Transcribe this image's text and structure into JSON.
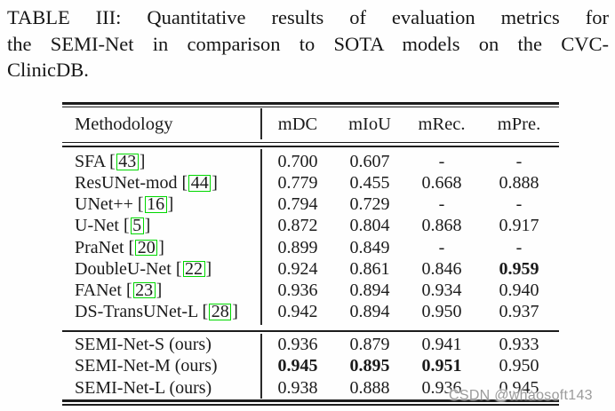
{
  "caption": {
    "lines": [
      "TABLE III: Quantitative results of evaluation metrics for",
      "the SEMI-Net in comparison to SOTA models on the CVC-",
      "ClinicDB."
    ]
  },
  "table": {
    "header": {
      "methodology": "Methodology",
      "cols": [
        "mDC",
        "mIoU",
        "mRec.",
        "mPre."
      ]
    },
    "sections": [
      {
        "id": "sota",
        "rows": [
          {
            "method": "SFA",
            "cite": "43",
            "values": [
              "0.700",
              "0.607",
              "-",
              "-"
            ],
            "bold": []
          },
          {
            "method": "ResUNet-mod",
            "cite": "44",
            "values": [
              "0.779",
              "0.455",
              "0.668",
              "0.888"
            ],
            "bold": []
          },
          {
            "method": "UNet++",
            "cite": "16",
            "values": [
              "0.794",
              "0.729",
              "-",
              "-"
            ],
            "bold": []
          },
          {
            "method": "U-Net",
            "cite": "5",
            "values": [
              "0.872",
              "0.804",
              "0.868",
              "0.917"
            ],
            "bold": []
          },
          {
            "method": "PraNet",
            "cite": "20",
            "values": [
              "0.899",
              "0.849",
              "-",
              "-"
            ],
            "bold": []
          },
          {
            "method": "DoubleU-Net",
            "cite": "22",
            "values": [
              "0.924",
              "0.861",
              "0.846",
              "0.959"
            ],
            "bold": [
              3
            ]
          },
          {
            "method": "FANet",
            "cite": "23",
            "values": [
              "0.936",
              "0.894",
              "0.934",
              "0.940"
            ],
            "bold": []
          },
          {
            "method": "DS-TransUNet-L",
            "cite": "28",
            "values": [
              "0.942",
              "0.894",
              "0.950",
              "0.937"
            ],
            "bold": []
          }
        ]
      },
      {
        "id": "ours",
        "rows": [
          {
            "method": "SEMI-Net-S (ours)",
            "cite": null,
            "values": [
              "0.936",
              "0.879",
              "0.941",
              "0.933"
            ],
            "bold": []
          },
          {
            "method": "SEMI-Net-M (ours)",
            "cite": null,
            "values": [
              "0.945",
              "0.895",
              "0.951",
              "0.950"
            ],
            "bold": [
              0,
              1,
              2
            ]
          },
          {
            "method": "SEMI-Net-L (ours)",
            "cite": null,
            "values": [
              "0.938",
              "0.888",
              "0.936",
              "0.945"
            ],
            "bold": []
          }
        ]
      }
    ]
  },
  "watermark": {
    "text": "CSDN @whaosoft143"
  },
  "colors": {
    "citation_box": "#00d800",
    "watermark": "#9b9b9b",
    "text": "#1b1b1b",
    "background": "#fefefe"
  }
}
